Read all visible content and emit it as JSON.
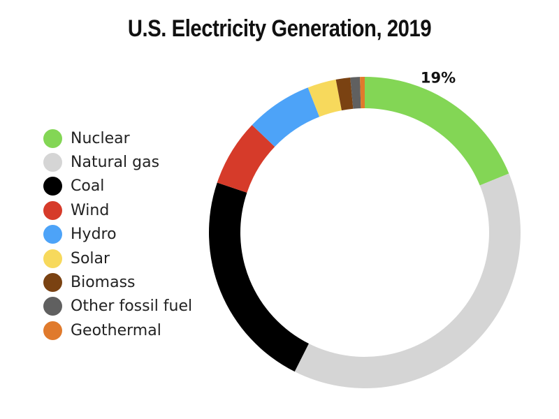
{
  "chart_data": {
    "type": "pie",
    "title": "U.S. Electricity Generation, 2019",
    "categories": [
      "Nuclear",
      "Natural gas",
      "Coal",
      "Wind",
      "Hydro",
      "Solar",
      "Biomass",
      "Other fossil fuel",
      "Geothermal"
    ],
    "values": [
      19,
      39,
      23,
      7,
      7,
      3,
      1.5,
      1,
      0.5
    ],
    "colors": [
      "#83d655",
      "#d5d5d5",
      "#000000",
      "#d63b2a",
      "#4da3f8",
      "#f7d95c",
      "#7a4212",
      "#606060",
      "#e07a2c"
    ],
    "data_labels": [
      {
        "category": "Nuclear",
        "text": "19%"
      }
    ],
    "legend_position": "left",
    "donut": true
  }
}
